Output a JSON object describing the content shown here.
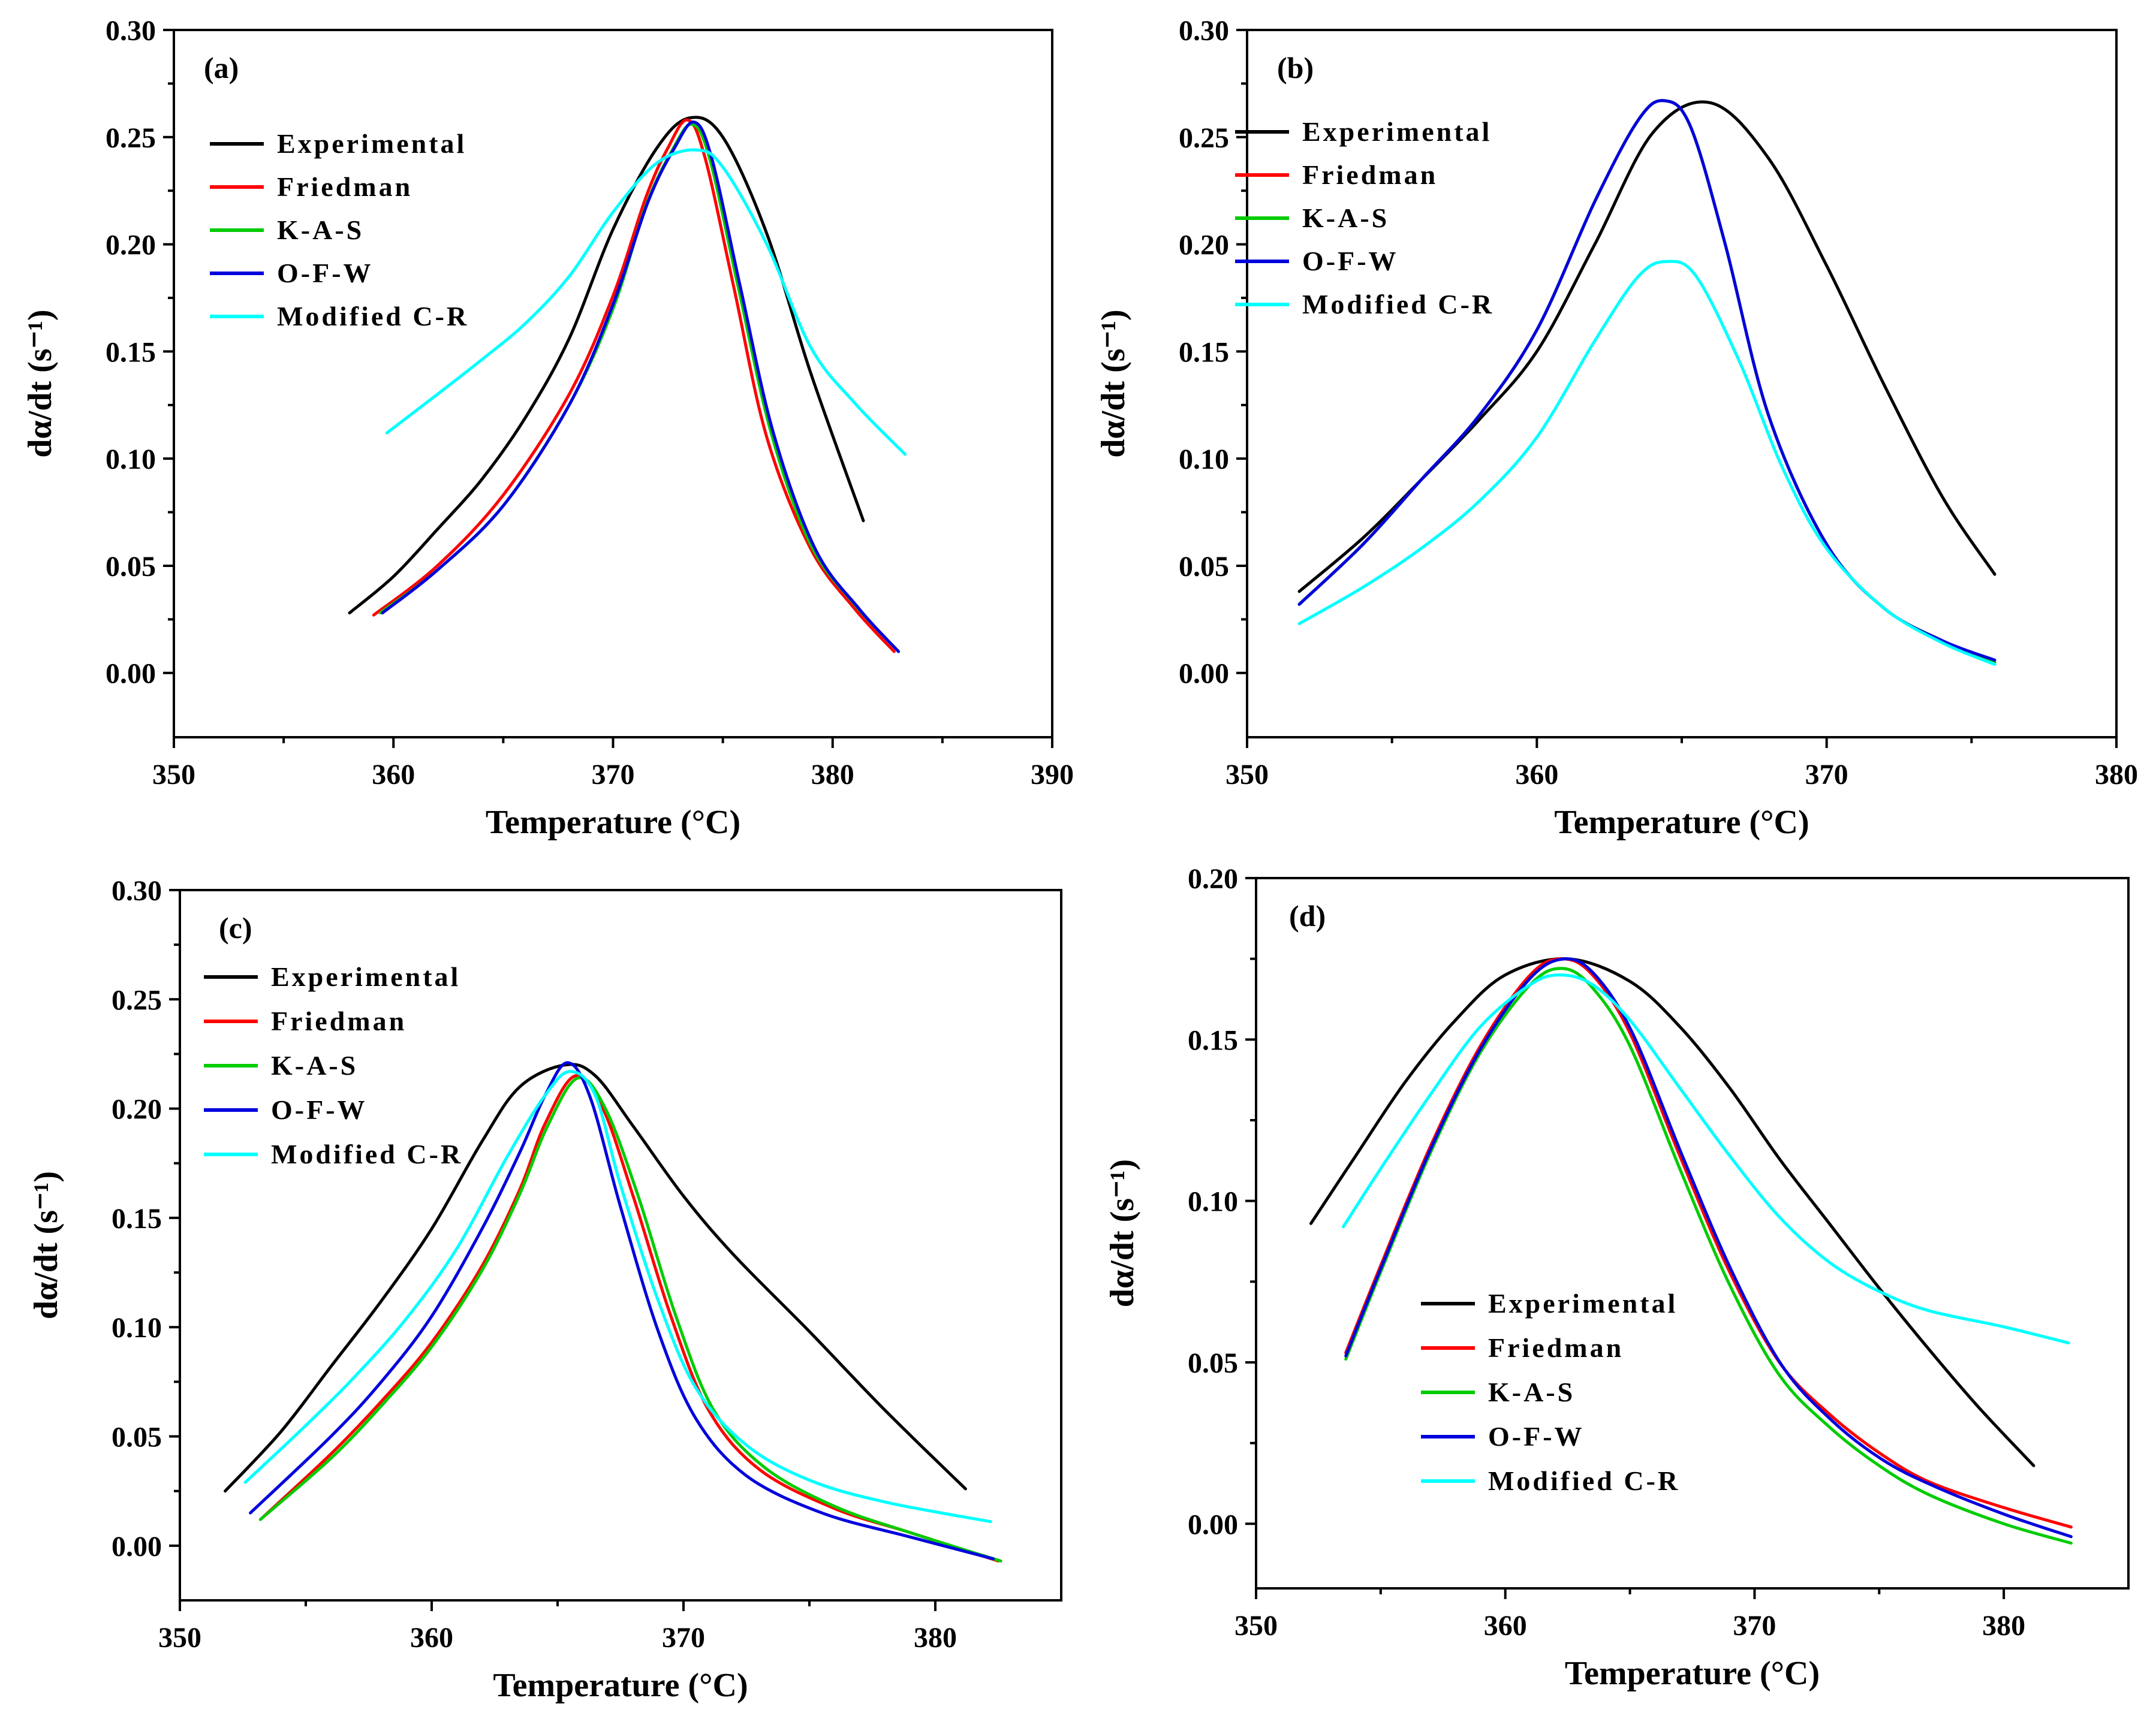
{
  "chart_data": [
    {
      "type": "line",
      "panel_label": "(a)",
      "xlabel": "Temperature (°C)",
      "ylabel": "dα/dt (s⁻¹)",
      "xlim": [
        350,
        390
      ],
      "ylim": [
        -0.03,
        0.3
      ],
      "xticks": [
        350,
        360,
        370,
        380,
        390
      ],
      "yticks": [
        0.0,
        0.05,
        0.1,
        0.15,
        0.2,
        0.25,
        0.3
      ],
      "xtick_labels": [
        "350",
        "360",
        "370",
        "380",
        "390"
      ],
      "ytick_labels": [
        "0.00",
        "0.05",
        "0.10",
        "0.15",
        "0.20",
        "0.25",
        "0.30"
      ],
      "legend_position": "top-left",
      "series": [
        {
          "name": "Experimental",
          "color": "#000000",
          "x": [
            358,
            360,
            362,
            364,
            366,
            368,
            370,
            372,
            373.5,
            375,
            377,
            379,
            381.4
          ],
          "y": [
            0.028,
            0.045,
            0.067,
            0.09,
            0.119,
            0.156,
            0.207,
            0.245,
            0.259,
            0.25,
            0.205,
            0.14,
            0.071
          ]
        },
        {
          "name": "Friedman",
          "color": "#ff0000",
          "x": [
            359.1,
            362,
            365,
            368,
            370,
            371.5,
            372.5,
            373.4,
            374.2,
            375.5,
            377,
            379,
            381,
            382.8
          ],
          "y": [
            0.027,
            0.05,
            0.083,
            0.13,
            0.176,
            0.222,
            0.245,
            0.258,
            0.24,
            0.18,
            0.11,
            0.058,
            0.03,
            0.01
          ]
        },
        {
          "name": "K-A-S",
          "color": "#00cc00",
          "x": [
            359.4,
            362,
            365,
            368,
            370,
            371.5,
            372.7,
            373.6,
            374.4,
            375.7,
            377.2,
            379,
            381,
            383
          ],
          "y": [
            0.028,
            0.048,
            0.078,
            0.125,
            0.17,
            0.218,
            0.244,
            0.256,
            0.24,
            0.18,
            0.112,
            0.06,
            0.032,
            0.01
          ]
        },
        {
          "name": "O-F-W",
          "color": "#0000dd",
          "x": [
            359.5,
            362,
            365,
            368,
            370,
            371.6,
            372.8,
            373.7,
            374.5,
            375.8,
            377.3,
            379.2,
            381.2,
            383
          ],
          "y": [
            0.028,
            0.048,
            0.078,
            0.125,
            0.172,
            0.22,
            0.245,
            0.257,
            0.24,
            0.18,
            0.112,
            0.058,
            0.03,
            0.01
          ]
        },
        {
          "name": "Modified C-R",
          "color": "#00ffff",
          "x": [
            359.7,
            362,
            364,
            366,
            368,
            370,
            372,
            373.8,
            375,
            377,
            379,
            381,
            383.3
          ],
          "y": [
            0.112,
            0.13,
            0.146,
            0.163,
            0.185,
            0.215,
            0.238,
            0.244,
            0.236,
            0.2,
            0.152,
            0.126,
            0.102
          ]
        }
      ]
    },
    {
      "type": "line",
      "panel_label": "(b)",
      "xlabel": "Temperature (°C)",
      "ylabel": "dα/dt (s⁻¹)",
      "xlim": [
        350,
        380
      ],
      "ylim": [
        -0.03,
        0.3
      ],
      "xticks": [
        350,
        360,
        370,
        380
      ],
      "yticks": [
        0.0,
        0.05,
        0.1,
        0.15,
        0.2,
        0.25,
        0.3
      ],
      "xtick_labels": [
        "350",
        "360",
        "370",
        "380"
      ],
      "ytick_labels": [
        "0.00",
        "0.05",
        "0.10",
        "0.15",
        "0.20",
        "0.25",
        "0.30"
      ],
      "legend_position": "top-right",
      "series": [
        {
          "name": "Experimental",
          "color": "#000000",
          "x": [
            351.8,
            354,
            356,
            358,
            360,
            362,
            364,
            366,
            368,
            370,
            372,
            374,
            375.8
          ],
          "y": [
            0.038,
            0.063,
            0.09,
            0.118,
            0.15,
            0.2,
            0.252,
            0.266,
            0.24,
            0.19,
            0.134,
            0.082,
            0.046
          ]
        },
        {
          "name": "Friedman",
          "color": "#ff0000",
          "x": [
            351.8,
            354,
            356,
            358,
            360,
            362,
            363.5,
            364.4,
            365.3,
            366.5,
            368,
            370,
            372,
            374,
            375.8
          ],
          "y": [
            0.032,
            0.06,
            0.09,
            0.12,
            0.16,
            0.22,
            0.258,
            0.267,
            0.255,
            0.2,
            0.12,
            0.06,
            0.03,
            0.015,
            0.005
          ]
        },
        {
          "name": "K-A-S",
          "color": "#00cc00",
          "x": [
            351.8,
            354,
            356,
            358,
            360,
            362,
            363.5,
            364.4,
            365.3,
            366.5,
            368,
            370,
            372,
            374,
            375.8
          ],
          "y": [
            0.032,
            0.06,
            0.09,
            0.12,
            0.16,
            0.22,
            0.258,
            0.267,
            0.255,
            0.2,
            0.12,
            0.06,
            0.03,
            0.015,
            0.005
          ]
        },
        {
          "name": "O-F-W",
          "color": "#0000dd",
          "x": [
            351.8,
            354,
            356,
            358,
            360,
            362,
            363.5,
            364.4,
            365.3,
            366.5,
            368,
            370,
            372,
            374,
            375.8
          ],
          "y": [
            0.032,
            0.06,
            0.09,
            0.12,
            0.16,
            0.22,
            0.258,
            0.267,
            0.255,
            0.2,
            0.12,
            0.06,
            0.03,
            0.015,
            0.006
          ]
        },
        {
          "name": "Modified C-R",
          "color": "#00ffff",
          "x": [
            351.8,
            354,
            356,
            358,
            360,
            362,
            363.5,
            364.5,
            365.5,
            367,
            368.5,
            370,
            372,
            374,
            375.8
          ],
          "y": [
            0.023,
            0.04,
            0.058,
            0.08,
            0.11,
            0.155,
            0.185,
            0.192,
            0.185,
            0.145,
            0.095,
            0.058,
            0.03,
            0.014,
            0.004
          ]
        }
      ]
    },
    {
      "type": "line",
      "panel_label": "(c)",
      "xlabel": "Temperature (°C)",
      "ylabel": "dα/dt (s⁻¹)",
      "xlim": [
        350,
        385
      ],
      "ylim": [
        -0.025,
        0.3
      ],
      "xticks": [
        350,
        360,
        370,
        380
      ],
      "yticks": [
        0.0,
        0.05,
        0.1,
        0.15,
        0.2,
        0.25,
        0.3
      ],
      "xtick_labels": [
        "350",
        "360",
        "370",
        "380"
      ],
      "ytick_labels": [
        "0.00",
        "0.05",
        "0.10",
        "0.15",
        "0.20",
        "0.25",
        "0.30"
      ],
      "legend_position": "top-left",
      "series": [
        {
          "name": "Experimental",
          "color": "#000000",
          "x": [
            351.8,
            354,
            356,
            358,
            360,
            362,
            363.5,
            365.3,
            366.5,
            368,
            370,
            372,
            375,
            378,
            381.2
          ],
          "y": [
            0.025,
            0.052,
            0.082,
            0.112,
            0.145,
            0.185,
            0.21,
            0.22,
            0.215,
            0.192,
            0.16,
            0.133,
            0.098,
            0.062,
            0.026
          ]
        },
        {
          "name": "Friedman",
          "color": "#ff0000",
          "x": [
            353.2,
            356,
            358,
            360,
            362,
            363.5,
            364.5,
            365.7,
            366.8,
            368,
            369.5,
            371,
            373,
            376,
            379,
            382.5
          ],
          "y": [
            0.012,
            0.042,
            0.066,
            0.093,
            0.128,
            0.163,
            0.193,
            0.215,
            0.2,
            0.16,
            0.105,
            0.062,
            0.035,
            0.017,
            0.006,
            -0.007
          ]
        },
        {
          "name": "K-A-S",
          "color": "#00cc00",
          "x": [
            353.2,
            356,
            358,
            360,
            362,
            363.5,
            364.6,
            365.8,
            366.9,
            368.2,
            369.7,
            371.2,
            373.2,
            376,
            379,
            382.6
          ],
          "y": [
            0.012,
            0.04,
            0.064,
            0.091,
            0.126,
            0.161,
            0.192,
            0.214,
            0.2,
            0.16,
            0.105,
            0.062,
            0.036,
            0.018,
            0.006,
            -0.007
          ]
        },
        {
          "name": "O-F-W",
          "color": "#0000dd",
          "x": [
            352.8,
            356,
            358,
            360,
            362,
            363.5,
            364.5,
            365.4,
            366.3,
            367.5,
            369,
            370.5,
            372.5,
            375.5,
            379,
            382.3
          ],
          "y": [
            0.015,
            0.05,
            0.075,
            0.105,
            0.145,
            0.18,
            0.206,
            0.221,
            0.205,
            0.155,
            0.098,
            0.058,
            0.032,
            0.015,
            0.004,
            -0.006
          ]
        },
        {
          "name": "Modified C-R",
          "color": "#00ffff",
          "x": [
            352.6,
            355,
            357,
            359,
            361,
            363,
            364.5,
            365.5,
            366.5,
            367.5,
            369,
            370.5,
            372.5,
            375,
            378,
            382.2
          ],
          "y": [
            0.029,
            0.055,
            0.078,
            0.104,
            0.136,
            0.178,
            0.206,
            0.217,
            0.206,
            0.165,
            0.112,
            0.072,
            0.046,
            0.03,
            0.02,
            0.011
          ]
        }
      ]
    },
    {
      "type": "line",
      "panel_label": "(d)",
      "xlabel": "Temperature (°C)",
      "ylabel": "dα/dt (s⁻¹)",
      "xlim": [
        350,
        385
      ],
      "ylim": [
        -0.02,
        0.2
      ],
      "xticks": [
        350,
        360,
        370,
        380
      ],
      "yticks": [
        0.0,
        0.05,
        0.1,
        0.15,
        0.2
      ],
      "xtick_labels": [
        "350",
        "360",
        "370",
        "380"
      ],
      "ytick_labels": [
        "0.00",
        "0.05",
        "0.10",
        "0.15",
        "0.20"
      ],
      "legend_position": "bottom-left",
      "series": [
        {
          "name": "Experimental",
          "color": "#000000",
          "x": [
            352.2,
            354,
            356,
            358,
            360,
            362.5,
            365,
            367,
            369,
            371,
            373,
            375,
            377,
            379,
            381.2
          ],
          "y": [
            0.093,
            0.114,
            0.137,
            0.156,
            0.17,
            0.175,
            0.168,
            0.154,
            0.135,
            0.113,
            0.093,
            0.073,
            0.054,
            0.036,
            0.018
          ]
        },
        {
          "name": "Friedman",
          "color": "#ff0000",
          "x": [
            353.6,
            355,
            357,
            359,
            361,
            362.3,
            363.5,
            365,
            367,
            369,
            371,
            373,
            375,
            377,
            380,
            382.7
          ],
          "y": [
            0.053,
            0.08,
            0.117,
            0.148,
            0.17,
            0.175,
            0.17,
            0.152,
            0.114,
            0.078,
            0.05,
            0.034,
            0.022,
            0.013,
            0.005,
            -0.001
          ]
        },
        {
          "name": "K-A-S",
          "color": "#00cc00",
          "x": [
            353.6,
            355,
            357,
            359,
            361,
            362.3,
            363.5,
            365,
            367,
            369,
            371,
            373,
            375,
            377,
            380,
            382.7
          ],
          "y": [
            0.051,
            0.078,
            0.115,
            0.146,
            0.167,
            0.172,
            0.166,
            0.148,
            0.11,
            0.074,
            0.046,
            0.03,
            0.018,
            0.009,
            0.0,
            -0.006
          ]
        },
        {
          "name": "O-F-W",
          "color": "#0000dd",
          "x": [
            353.6,
            355,
            357,
            359,
            361,
            362.4,
            363.6,
            365.1,
            367.1,
            369.1,
            371.1,
            373.1,
            375.1,
            377.1,
            380,
            382.7
          ],
          "y": [
            0.052,
            0.079,
            0.116,
            0.147,
            0.169,
            0.175,
            0.17,
            0.152,
            0.114,
            0.078,
            0.049,
            0.032,
            0.02,
            0.012,
            0.003,
            -0.004
          ]
        },
        {
          "name": "Modified C-R",
          "color": "#00ffff",
          "x": [
            353.5,
            355,
            357,
            359,
            361,
            362.2,
            363.5,
            365,
            367,
            369,
            371,
            373,
            375,
            377,
            380,
            382.6
          ],
          "y": [
            0.092,
            0.11,
            0.133,
            0.154,
            0.167,
            0.17,
            0.167,
            0.156,
            0.135,
            0.114,
            0.095,
            0.081,
            0.072,
            0.066,
            0.061,
            0.056
          ]
        }
      ]
    }
  ]
}
